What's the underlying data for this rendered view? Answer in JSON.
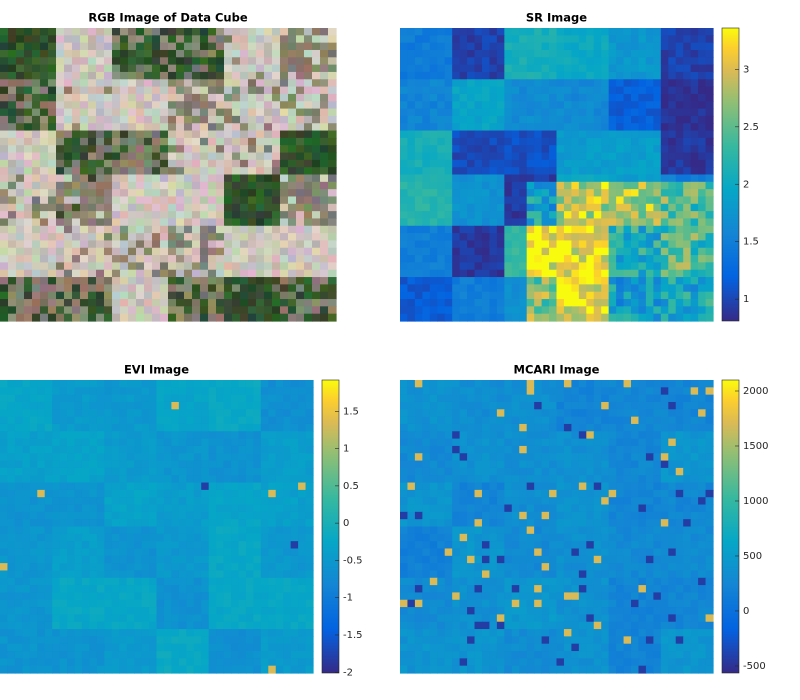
{
  "chart_data": [
    {
      "type": "image",
      "title": "RGB Image of Data Cube"
    },
    {
      "type": "heatmap",
      "title": "SR Image",
      "clim": [
        0.81,
        3.36
      ],
      "cticks": [
        1,
        1.5,
        2,
        2.5,
        3
      ]
    },
    {
      "type": "heatmap",
      "title": "EVI Image",
      "clim": [
        -2.01,
        1.92
      ],
      "cticks": [
        -2,
        -1.5,
        -1,
        -0.5,
        0,
        0.5,
        1,
        1.5
      ]
    },
    {
      "type": "heatmap",
      "title": "MCARI Image",
      "clim": [
        -564,
        2100
      ],
      "cticks": [
        -500,
        0,
        500,
        1000,
        1500,
        2000
      ]
    }
  ]
}
